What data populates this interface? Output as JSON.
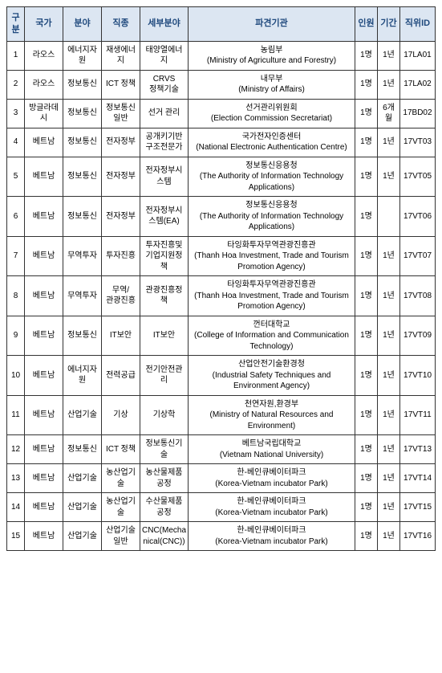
{
  "headers": {
    "no": "구분",
    "country": "국가",
    "field": "분야",
    "job": "직종",
    "sub": "세부분야",
    "org": "파견기관",
    "num": "인원",
    "period": "기간",
    "id": "직위ID"
  },
  "rows": [
    {
      "no": "1",
      "country": "라오스",
      "field": "에너지자원",
      "job": "재생에너지",
      "sub": "태양열에너지",
      "org": "농림부\n(Ministry of Agriculture and Forestry)",
      "num": "1명",
      "period": "1년",
      "id": "17LA01"
    },
    {
      "no": "2",
      "country": "라오스",
      "field": "정보통신",
      "job": "ICT 정책",
      "sub": "CRVS 정책기술",
      "org": "내무부\n(Ministry of Affairs)",
      "num": "1명",
      "period": "1년",
      "id": "17LA02"
    },
    {
      "no": "3",
      "country": "방글라데시",
      "field": "정보통신",
      "job": "정보통신일반",
      "sub": "선거 관리",
      "org": "선거관리위원회\n(Election Commission Secretariat)",
      "num": "1명",
      "period": "6개월",
      "id": "17BD02"
    },
    {
      "no": "4",
      "country": "베트남",
      "field": "정보통신",
      "job": "전자정부",
      "sub": "공개키기반구조전문가",
      "org": "국가전자인증센터\n(National Electronic Authentication Centre)",
      "num": "1명",
      "period": "1년",
      "id": "17VT03"
    },
    {
      "no": "5",
      "country": "베트남",
      "field": "정보통신",
      "job": "전자정부",
      "sub": "전자정부시스템",
      "org": "정보통신응용청\n(The Authority of Information Technology Applications)",
      "num": "1명",
      "period": "1년",
      "id": "17VT05"
    },
    {
      "no": "6",
      "country": "베트남",
      "field": "정보통신",
      "job": "전자정부",
      "sub": "전자정부시스템(EA)",
      "org": "정보통신응용청\n(The Authority of Information Technology Applications)",
      "num": "1명",
      "period": "",
      "id": "17VT06"
    },
    {
      "no": "7",
      "country": "베트남",
      "field": "무역투자",
      "job": "투자진흥",
      "sub": "투자진흥및기업지원정책",
      "org": "타잉화투자무역관광진흥관\n(Thanh Hoa Investment, Trade and Tourism Promotion Agency)",
      "num": "1명",
      "period": "1년",
      "id": "17VT07"
    },
    {
      "no": "8",
      "country": "베트남",
      "field": "무역투자",
      "job": "무역/\n관광진흥",
      "sub": "관광진흥정책",
      "org": "타잉화투자무역관광진흥관\n(Thanh Hoa Investment, Trade and Tourism Promotion Agency)",
      "num": "1명",
      "period": "1년",
      "id": "17VT08"
    },
    {
      "no": "9",
      "country": "베트남",
      "field": "정보통신",
      "job": "IT보안",
      "sub": "IT보안",
      "org": "껀터대학교\n(College of Information and Communication Technology)",
      "num": "1명",
      "period": "1년",
      "id": "17VT09"
    },
    {
      "no": "10",
      "country": "베트남",
      "field": "에너지자원",
      "job": "전력공급",
      "sub": "전기안전관리",
      "org": "산업안전기술환경청\n(Industrial Safety Techniques and Environment Agency)",
      "num": "1명",
      "period": "1년",
      "id": "17VT10"
    },
    {
      "no": "11",
      "country": "베트남",
      "field": "산업기술",
      "job": "기상",
      "sub": "기상학",
      "org": "천연자원,환경부\n(Ministry of Natural Resources and Environment)",
      "num": "1명",
      "period": "1년",
      "id": "17VT11"
    },
    {
      "no": "12",
      "country": "베트남",
      "field": "정보통신",
      "job": "ICT 정책",
      "sub": "정보통신기술",
      "org": "베트남국립대학교\n(Vietnam National University)",
      "num": "1명",
      "period": "1년",
      "id": "17VT13"
    },
    {
      "no": "13",
      "country": "베트남",
      "field": "산업기술",
      "job": "농산업기술",
      "sub": "농산물제품공정",
      "org": "한-베인큐베이터파크\n(Korea-Vietnam incubator Park)",
      "num": "1명",
      "period": "1년",
      "id": "17VT14"
    },
    {
      "no": "14",
      "country": "베트남",
      "field": "산업기술",
      "job": "농산업기술",
      "sub": "수산물제품공정",
      "org": "한-베인큐베이터파크\n(Korea-Vietnam incubator Park)",
      "num": "1명",
      "period": "1년",
      "id": "17VT15"
    },
    {
      "no": "15",
      "country": "베트남",
      "field": "산업기술",
      "job": "산업기술일반",
      "sub": "CNC(Mechanical(CNC))",
      "org": "한-베인큐베이터파크\n(Korea-Vietnam incubator Park)",
      "num": "1명",
      "period": "1년",
      "id": "17VT16"
    }
  ]
}
